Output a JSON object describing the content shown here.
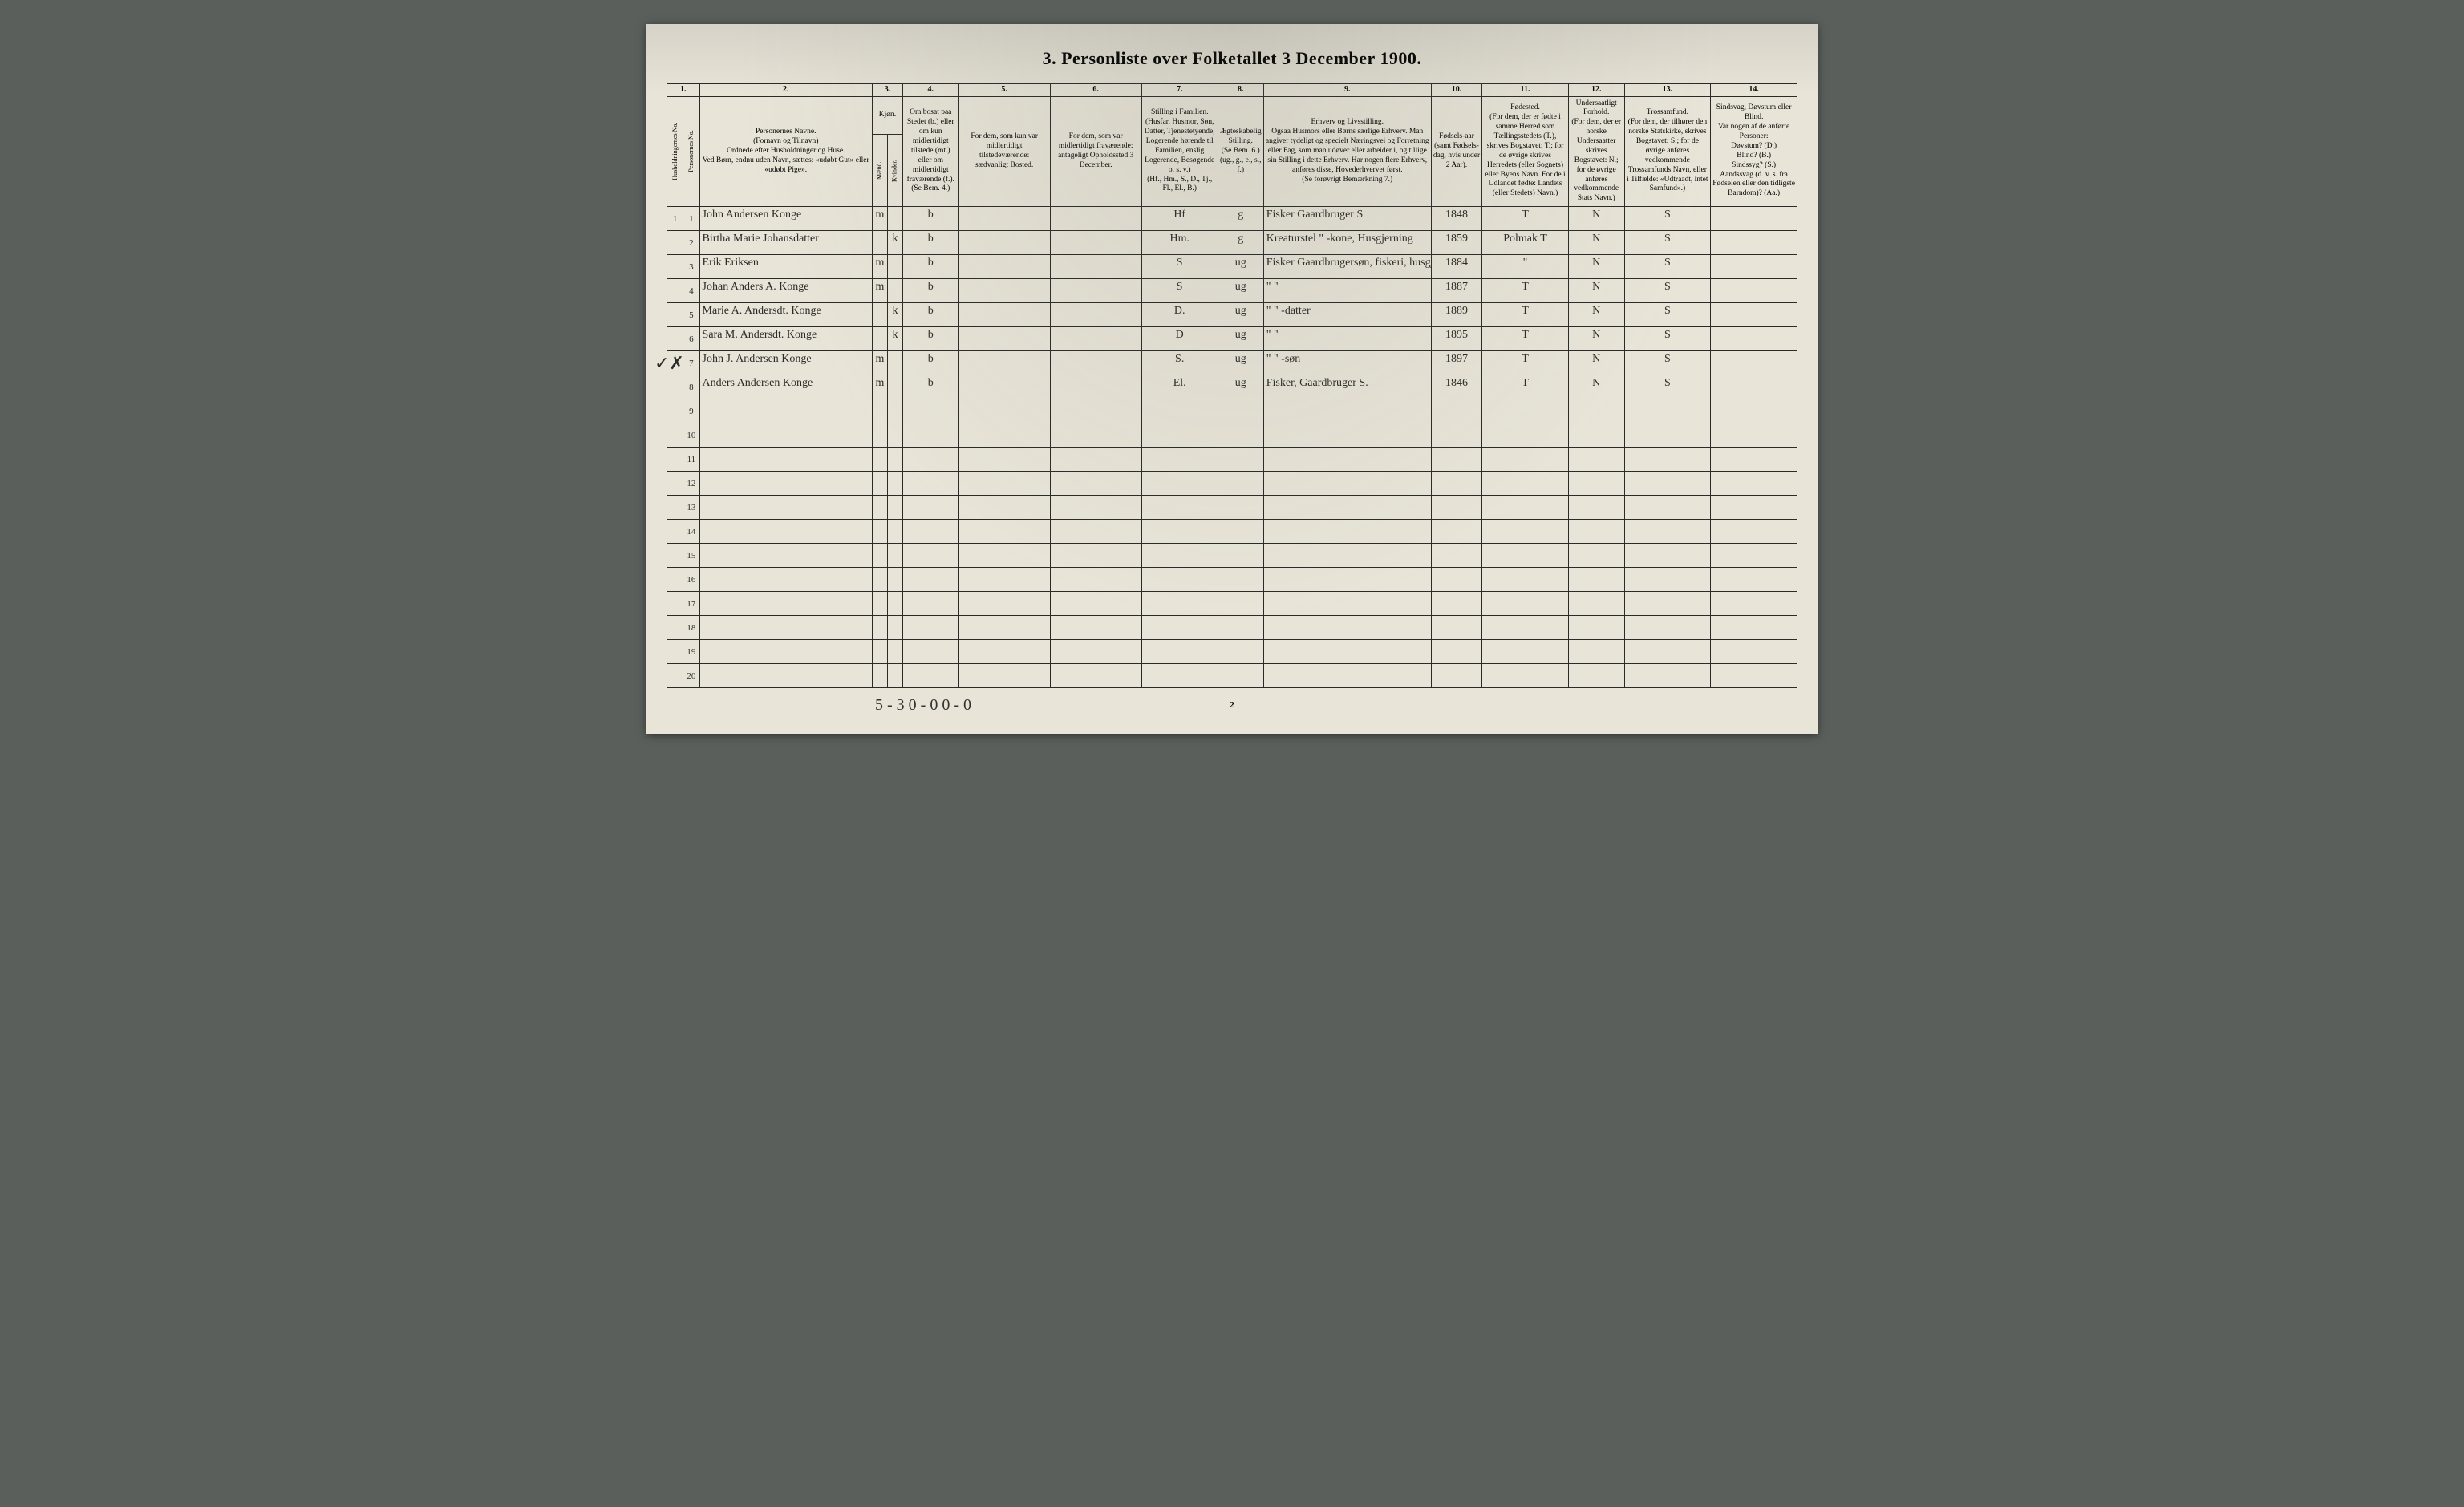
{
  "title": "3. Personliste over Folketallet 3 December 1900.",
  "column_numbers": [
    "1.",
    "2.",
    "3.",
    "4.",
    "5.",
    "6.",
    "7.",
    "8.",
    "9.",
    "10.",
    "11.",
    "12.",
    "13.",
    "14."
  ],
  "headers": {
    "c1a": "Husholdningernes No.",
    "c1b": "Personernes No.",
    "c2": "Personernes Navne.\n(Fornavn og Tilnavn)\nOrdnede efter Husholdninger og Huse.\nVed Børn, endnu uden Navn, sættes: «udøbt Gut» eller «udøbt Pige».",
    "c3": "Kjøn.",
    "c3a": "Mænd.",
    "c3b": "Kvinder.",
    "c3foot": "m. | k.",
    "c4": "Om bosat paa Stedet (b.) eller om kun midlertidigt tilstede (mt.) eller om midlertidigt fraværende (f.).\n(Se Bem. 4.)",
    "c5": "For dem, som kun var midlertidigt tilstedeværende:\nsædvanligt Bosted.",
    "c6": "For dem, som var midlertidigt fraværende:\nantageligt Opholdssted 3 December.",
    "c7": "Stilling i Familien.\n(Husfar, Husmor, Søn, Datter, Tjenestetyende, Logerende hørende til Familien, enslig Logerende, Besøgende o. s. v.)\n(Hf., Hm., S., D., Tj., Fl., El., B.)",
    "c8": "Ægteskabelig Stilling.\n(Se Bem. 6.)\n(ug., g., e., s., f.)",
    "c9": "Erhverv og Livsstilling.\nOgsaa Husmors eller Børns særlige Erhverv. Man angiver tydeligt og specielt Næringsvei og Forretning eller Fag, som man udøver eller arbeider i, og tillige sin Stilling i dette Erhverv. Har nogen flere Erhverv, anføres disse, Hovederhvervet først.\n(Se forøvrigt Bemærkning 7.)",
    "c10": "Fødsels-aar\n(samt Fødsels-dag, hvis under 2 Aar).",
    "c11": "Fødested.\n(For dem, der er fødte i samme Herred som Tællingsstedets (T.), skrives Bogstavet: T.; for de øvrige skrives Herredets (eller Sognets) eller Byens Navn. For de i Udlandet fødte: Landets (eller Stedets) Navn.)",
    "c12": "Undersaatligt Forhold.\n(For dem, der er norske Undersaatter skrives Bogstavet: N.; for de øvrige anføres vedkommende Stats Navn.)",
    "c13": "Trossamfund.\n(For dem, der tilhører den norske Statskirke, skrives Bogstavet: S.; for de øvrige anføres vedkommende Trossamfunds Navn, eller i Tilfælde: «Udtraadt, intet Samfund».)",
    "c14": "Sindsvag, Døvstum eller Blind.\nVar nogen af de anførte Personer:\nDøvstum? (D.)\nBlind? (B.)\nSindssyg? (S.)\nAandssvag (d. v. s. fra Fødselen eller den tidligste Barndom)? (Aa.)"
  },
  "rows": [
    {
      "hh": "1",
      "no": "1",
      "name": "John Andersen Konge",
      "sex": "m",
      "res": "b",
      "c5": "",
      "c6": "",
      "fam": "Hf",
      "mar": "g",
      "occ": "Fisker Gaardbruger S",
      "year": "1848",
      "birthplace": "T",
      "nat": "N",
      "rel": "S",
      "c14": ""
    },
    {
      "hh": "",
      "no": "2",
      "name": "Birtha Marie Johansdatter",
      "sex": "k",
      "res": "b",
      "c5": "",
      "c6": "",
      "fam": "Hm.",
      "mar": "g",
      "occ": "Kreaturstel \" -kone, Husgjerning",
      "year": "1859",
      "birthplace": "Polmak T",
      "nat": "N",
      "rel": "S",
      "c14": ""
    },
    {
      "hh": "",
      "no": "3",
      "name": "Erik Eriksen",
      "sex": "m",
      "res": "b",
      "c5": "",
      "c6": "",
      "fam": "S",
      "mar": "ug",
      "occ": "Fisker Gaardbrugersøn, fiskeri, husgjerning",
      "year": "1884",
      "birthplace": "\"",
      "nat": "N",
      "rel": "S",
      "c14": ""
    },
    {
      "hh": "",
      "no": "4",
      "name": "Johan Anders A. Konge",
      "sex": "m",
      "res": "b",
      "c5": "",
      "c6": "",
      "fam": "S",
      "mar": "ug",
      "occ": "\"          \"",
      "year": "1887",
      "birthplace": "T",
      "nat": "N",
      "rel": "S",
      "c14": ""
    },
    {
      "hh": "",
      "no": "5",
      "name": "Marie A. Andersdt. Konge",
      "sex": "k",
      "res": "b",
      "c5": "",
      "c6": "",
      "fam": "D.",
      "mar": "ug",
      "occ": "\"     \"   -datter",
      "year": "1889",
      "birthplace": "T",
      "nat": "N",
      "rel": "S",
      "c14": ""
    },
    {
      "hh": "",
      "no": "6",
      "name": "Sara M. Andersdt. Konge",
      "sex": "k",
      "res": "b",
      "c5": "",
      "c6": "",
      "fam": "D",
      "mar": "ug",
      "occ": "\"          \"",
      "year": "1895",
      "birthplace": "T",
      "nat": "N",
      "rel": "S",
      "c14": ""
    },
    {
      "hh": "",
      "no": "7",
      "name": "John J. Andersen Konge",
      "sex": "m",
      "res": "b",
      "c5": "",
      "c6": "",
      "fam": "S.",
      "mar": "ug",
      "occ": "\"     \"   -søn",
      "year": "1897",
      "birthplace": "T",
      "nat": "N",
      "rel": "S",
      "c14": ""
    },
    {
      "hh": "",
      "no": "8",
      "name": "Anders Andersen Konge",
      "sex": "m",
      "res": "b",
      "c5": "",
      "c6": "",
      "fam": "El.",
      "mar": "ug",
      "occ": "Fisker, Gaardbruger S.",
      "year": "1846",
      "birthplace": "T",
      "nat": "N",
      "rel": "S",
      "c14": ""
    }
  ],
  "blank_rows": [
    "9",
    "10",
    "11",
    "12",
    "13",
    "14",
    "15",
    "16",
    "17",
    "18",
    "19",
    "20"
  ],
  "footer_tally": "5 - 3   0 - 0    0 - 0",
  "page_number": "2",
  "margin_mark_8": "✓✗",
  "colors": {
    "paper": "#e8e4d8",
    "ink": "#2a2a28",
    "bg": "#5a5f5c"
  },
  "column_widths_pct": [
    1.6,
    1.6,
    17,
    1.5,
    1.5,
    5.5,
    9,
    9,
    7.5,
    4.5,
    16.5,
    5,
    8.5,
    5.5,
    8.5,
    8.5
  ]
}
